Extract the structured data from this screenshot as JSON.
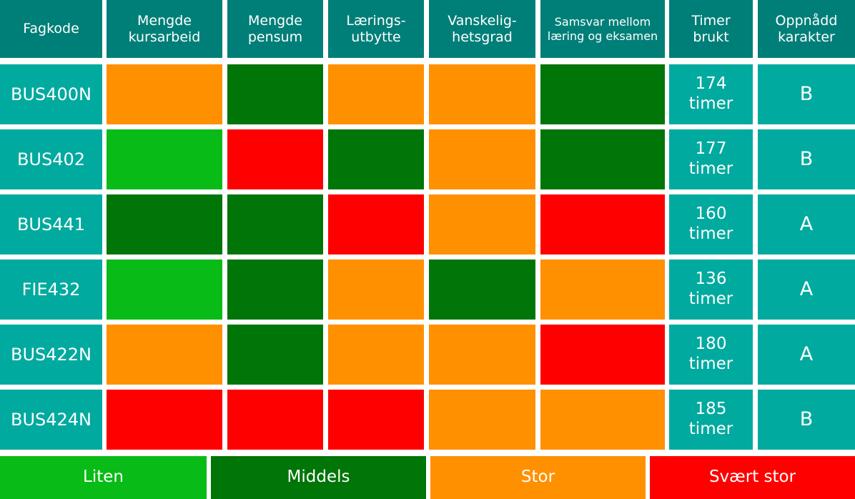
{
  "header": {
    "columns": [
      "Fagkode",
      "Mengde kursarbeid",
      "Mengde pensum",
      "Lærings-utbytte",
      "Vanskelig-hetsgrad",
      "Samsvar mellom læring og eksamen",
      "Timer brukt",
      "Oppnådd karakter"
    ]
  },
  "rows": [
    {
      "code": "BUS400N",
      "levels": [
        "Stor",
        "Middels",
        "Stor",
        "Stor",
        "Middels"
      ],
      "hours": "174 timer",
      "grade": "B"
    },
    {
      "code": "BUS402",
      "levels": [
        "Liten",
        "Svært stor",
        "Middels",
        "Stor",
        "Middels"
      ],
      "hours": "177 timer",
      "grade": "B"
    },
    {
      "code": "BUS441",
      "levels": [
        "Middels",
        "Middels",
        "Svært stor",
        "Stor",
        "Svært stor"
      ],
      "hours": "160 timer",
      "grade": "A"
    },
    {
      "code": "FIE432",
      "levels": [
        "Liten",
        "Middels",
        "Stor",
        "Middels",
        "Stor"
      ],
      "hours": "136 timer",
      "grade": "A"
    },
    {
      "code": "BUS422N",
      "levels": [
        "Stor",
        "Middels",
        "Stor",
        "Stor",
        "Svært stor"
      ],
      "hours": "180 timer",
      "grade": "A"
    },
    {
      "code": "BUS424N",
      "levels": [
        "Svært stor",
        "Svært stor",
        "Svært stor",
        "Stor",
        "Stor"
      ],
      "hours": "185 timer",
      "grade": "B"
    }
  ],
  "legend": [
    {
      "label": "Liten",
      "color": "#08bb16"
    },
    {
      "label": "Middels",
      "color": "#007508"
    },
    {
      "label": "Stor",
      "color": "#ff9000"
    },
    {
      "label": "Svært stor",
      "color": "#ff0000"
    }
  ],
  "colors": {
    "header": "#007f78",
    "cell": "#00aa9f"
  }
}
